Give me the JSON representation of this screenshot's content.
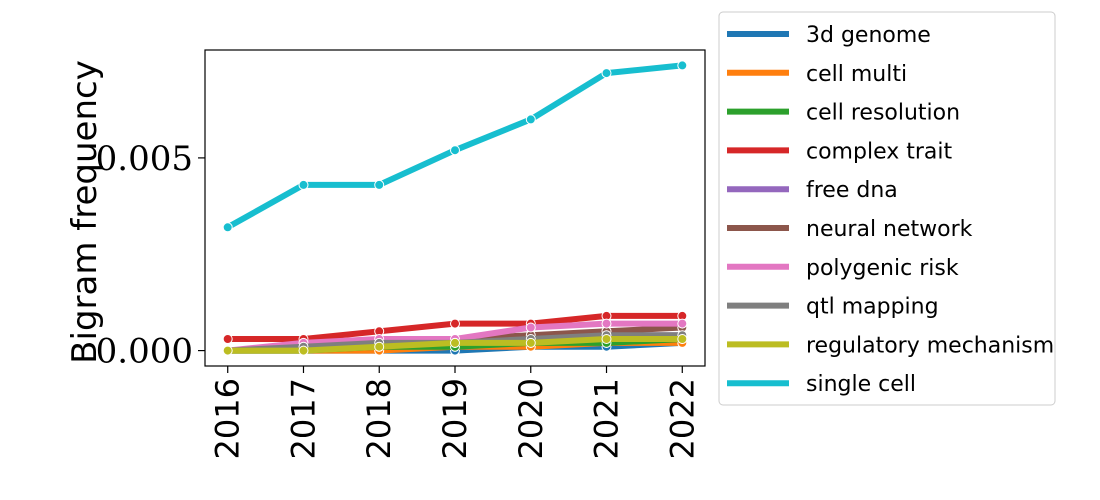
{
  "chart_data": {
    "type": "line",
    "title": "",
    "xlabel": "",
    "ylabel": "Bigram frequency",
    "x": [
      2016,
      2017,
      2018,
      2019,
      2020,
      2021,
      2022
    ],
    "x_tick_labels": [
      "2016",
      "2017",
      "2018",
      "2019",
      "2020",
      "2021",
      "2022"
    ],
    "y_ticks": [
      0.0,
      0.005
    ],
    "y_tick_labels": [
      "0.000",
      "0.005"
    ],
    "ylim": [
      -0.0004,
      0.0078
    ],
    "xlim": [
      2015.7,
      2022.3
    ],
    "grid": false,
    "legend_position": "outside-right",
    "series": [
      {
        "name": "3d genome",
        "color": "#1f77b4",
        "values": [
          0.0,
          0.0,
          0.0,
          0.0,
          0.0001,
          0.0001,
          0.0002
        ]
      },
      {
        "name": "cell multi",
        "color": "#ff7f0e",
        "values": [
          0.0,
          0.0,
          0.0,
          0.0001,
          0.0001,
          0.0002,
          0.0002
        ]
      },
      {
        "name": "cell resolution",
        "color": "#2ca02c",
        "values": [
          0.0,
          0.0,
          0.0001,
          0.0001,
          0.0002,
          0.0002,
          0.0003
        ]
      },
      {
        "name": "complex trait",
        "color": "#d62728",
        "values": [
          0.0003,
          0.0003,
          0.0005,
          0.0007,
          0.0007,
          0.0009,
          0.0009
        ]
      },
      {
        "name": "free dna",
        "color": "#9467bd",
        "values": [
          0.0,
          0.0001,
          0.0002,
          0.0002,
          0.0003,
          0.0004,
          0.0004
        ]
      },
      {
        "name": "neural network",
        "color": "#8c564b",
        "values": [
          0.0,
          0.0001,
          0.0002,
          0.0003,
          0.0004,
          0.0005,
          0.0006
        ]
      },
      {
        "name": "polygenic risk",
        "color": "#e377c2",
        "values": [
          0.0,
          0.0002,
          0.0003,
          0.0003,
          0.0006,
          0.0007,
          0.0007
        ]
      },
      {
        "name": "qtl mapping",
        "color": "#7f7f7f",
        "values": [
          0.0,
          0.0001,
          0.0002,
          0.0002,
          0.0003,
          0.0004,
          0.0004
        ]
      },
      {
        "name": "regulatory mechanism",
        "color": "#bcbd22",
        "values": [
          0.0,
          0.0,
          0.0001,
          0.0002,
          0.0002,
          0.0003,
          0.0003
        ]
      },
      {
        "name": "single cell",
        "color": "#17becf",
        "values": [
          0.0032,
          0.0043,
          0.0043,
          0.0052,
          0.006,
          0.0072,
          0.0074
        ]
      }
    ]
  }
}
